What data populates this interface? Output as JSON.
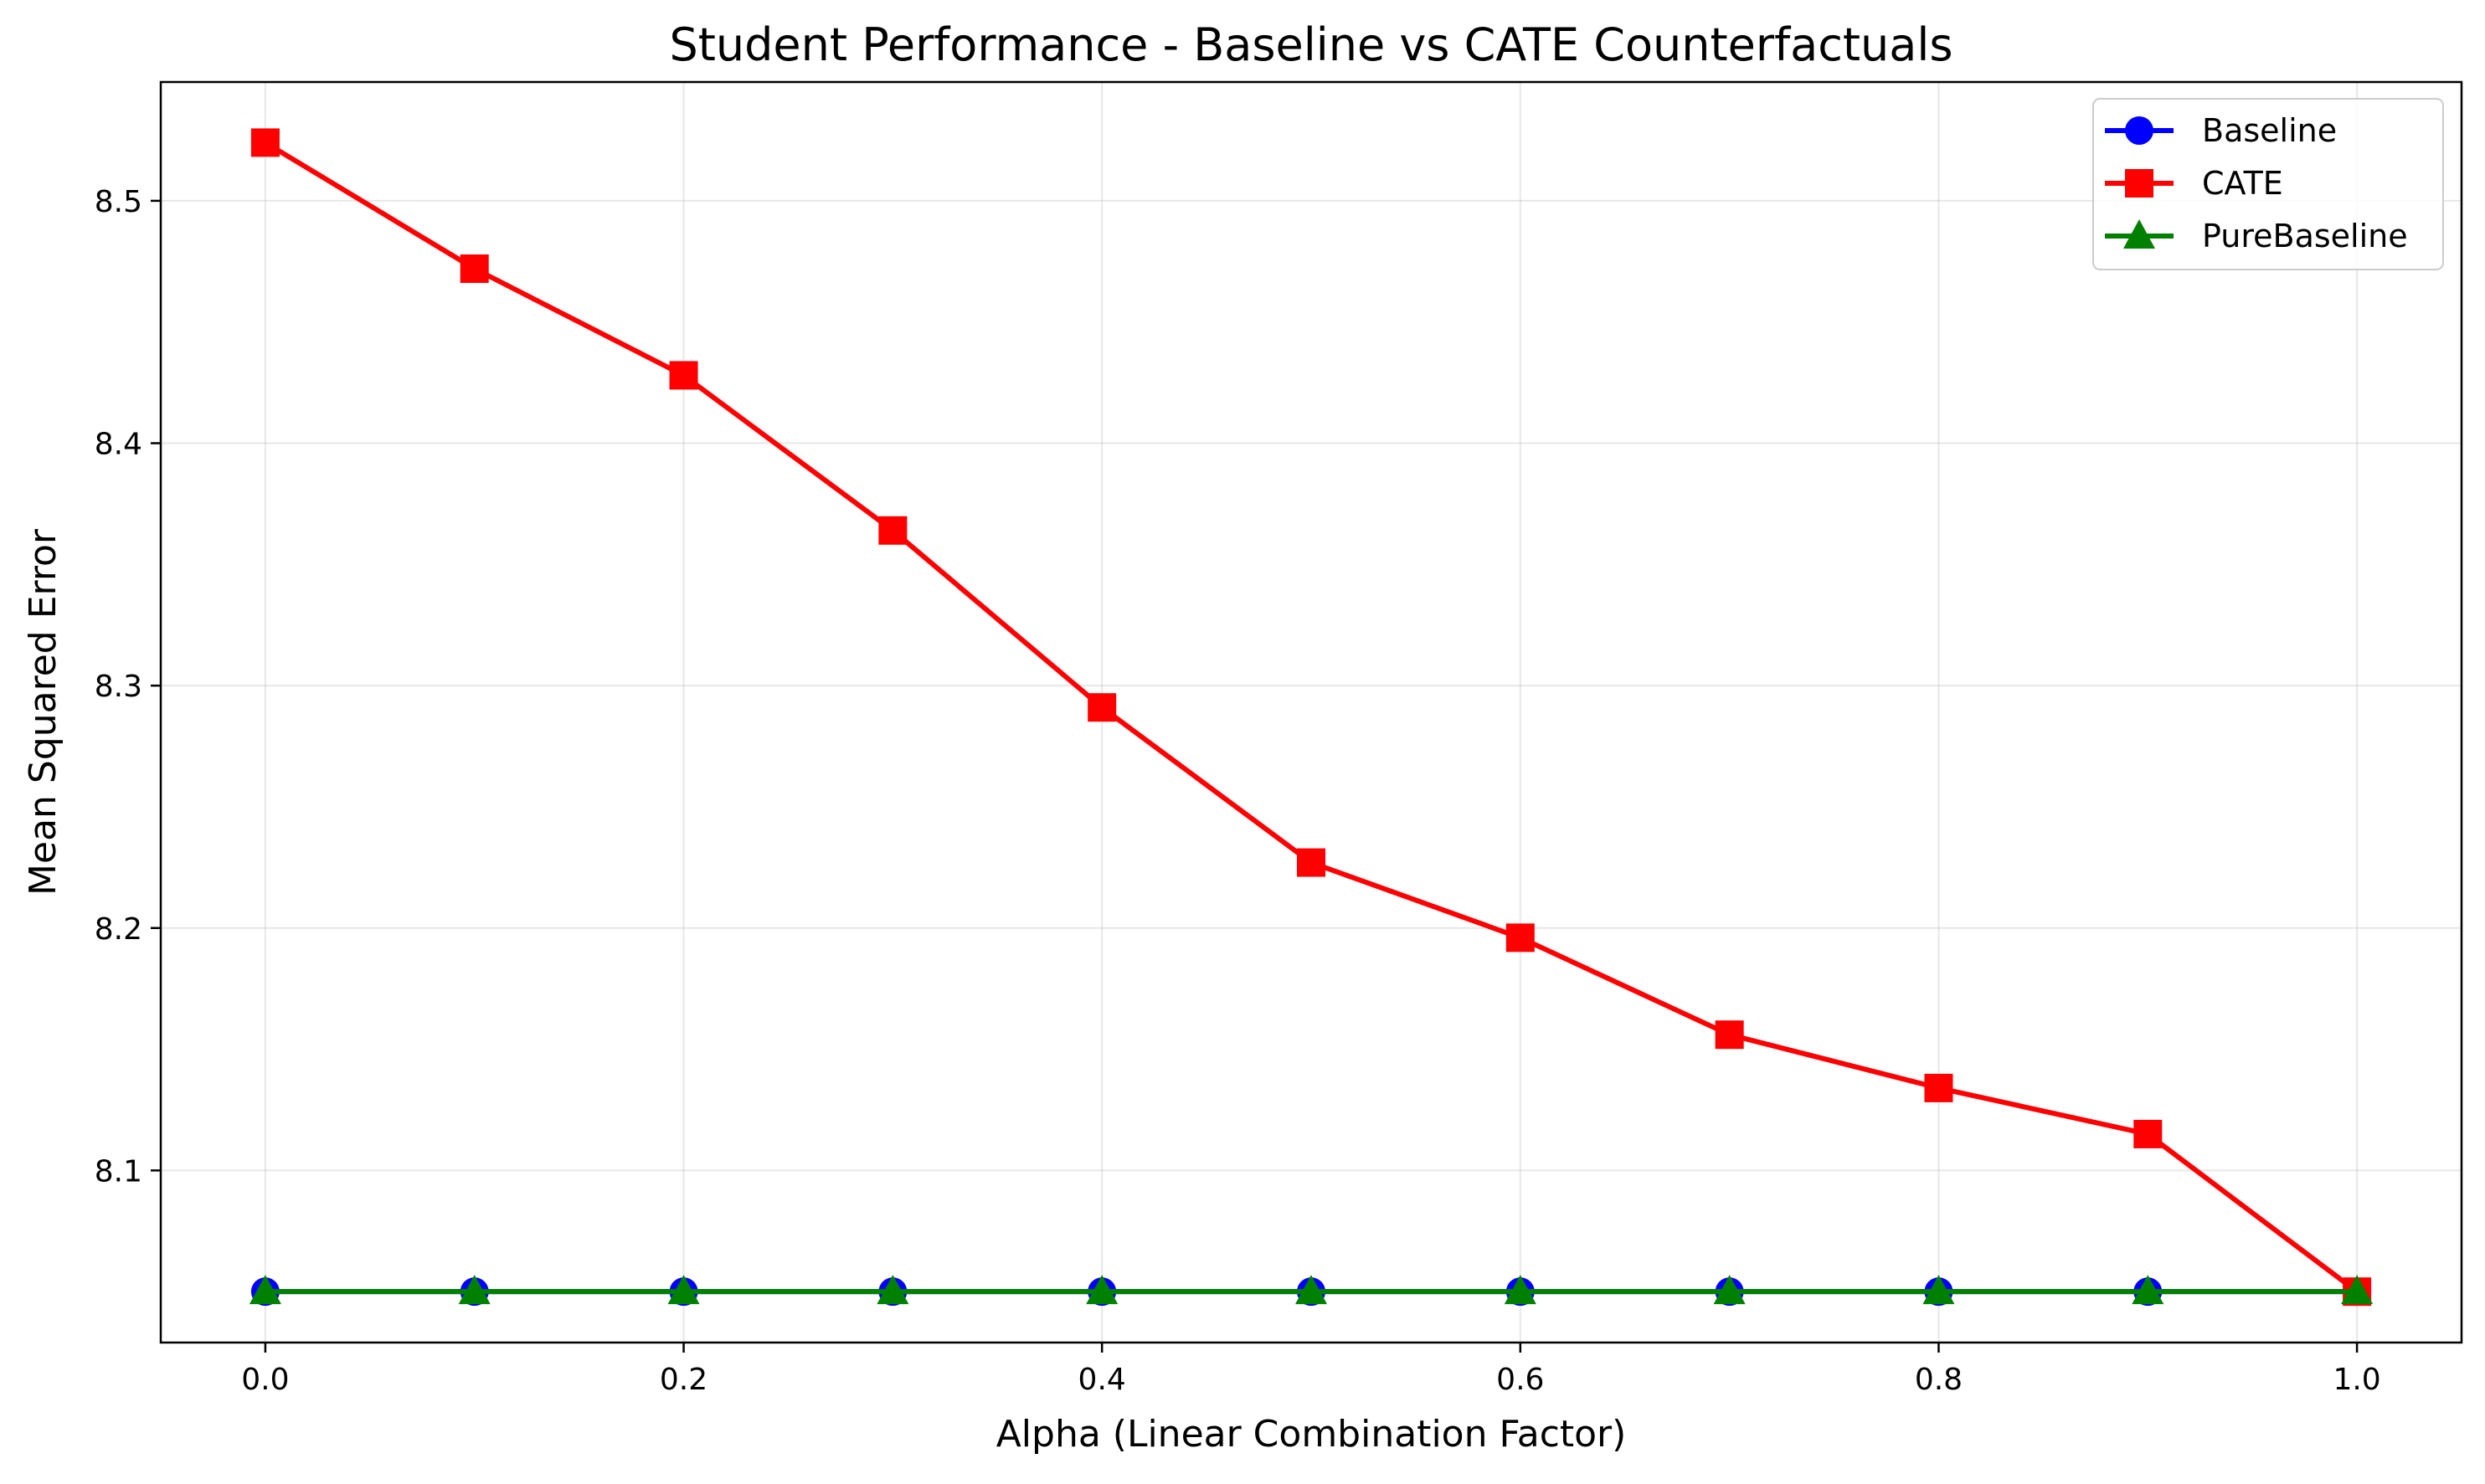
{
  "chart_data": {
    "type": "line",
    "title": "Student Performance - Baseline vs CATE Counterfactuals",
    "xlabel": "Alpha (Linear Combination Factor)",
    "ylabel": "Mean Squared Error",
    "x": [
      0.0,
      0.1,
      0.2,
      0.3,
      0.4,
      0.5,
      0.6,
      0.7,
      0.8,
      0.9,
      1.0
    ],
    "xlim": [
      -0.05,
      1.05
    ],
    "ylim": [
      8.029,
      8.549
    ],
    "xticks": [
      "0.0",
      "0.2",
      "0.4",
      "0.6",
      "0.8",
      "1.0"
    ],
    "xtick_values": [
      0.0,
      0.2,
      0.4,
      0.6,
      0.8,
      1.0
    ],
    "yticks": [
      "8.1",
      "8.2",
      "8.3",
      "8.4",
      "8.5"
    ],
    "ytick_values": [
      8.1,
      8.2,
      8.3,
      8.4,
      8.5
    ],
    "grid": true,
    "legend_position": "top-right",
    "series": [
      {
        "name": "Baseline",
        "color": "#0000ff",
        "marker": "circle",
        "values": [
          8.05,
          8.05,
          8.05,
          8.05,
          8.05,
          8.05,
          8.05,
          8.05,
          8.05,
          8.05,
          8.05
        ]
      },
      {
        "name": "CATE",
        "color": "#ff0000",
        "marker": "square",
        "values": [
          8.524,
          8.472,
          8.428,
          8.364,
          8.291,
          8.227,
          8.196,
          8.156,
          8.134,
          8.115,
          8.05
        ]
      },
      {
        "name": "PureBaseline",
        "color": "#008000",
        "marker": "triangle",
        "values": [
          8.05,
          8.05,
          8.05,
          8.05,
          8.05,
          8.05,
          8.05,
          8.05,
          8.05,
          8.05,
          8.05
        ]
      }
    ]
  }
}
